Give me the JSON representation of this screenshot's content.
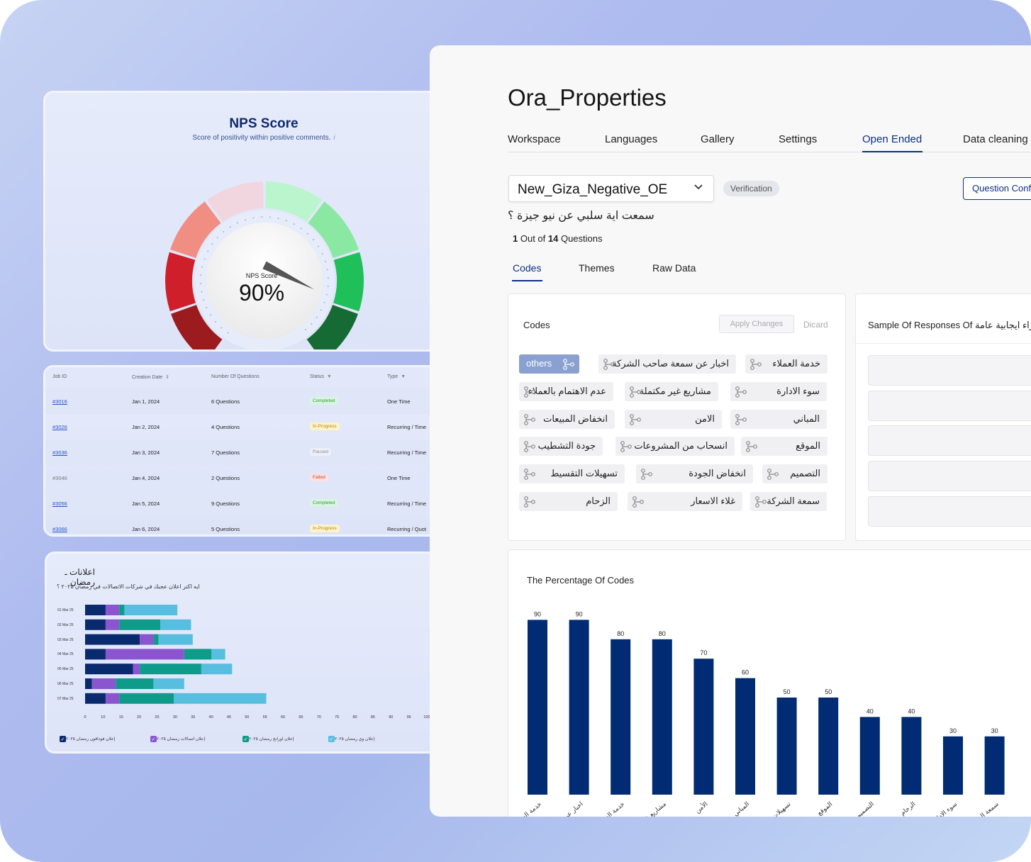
{
  "nps": {
    "title": "NPS Score",
    "subtitle": "Score of positivity within positive comments.",
    "info_icon": "i",
    "label": "NPS Score",
    "value": "90%",
    "needle_fraction": 0.9,
    "segment_colors": [
      "#9b1b1e",
      "#cf1f2b",
      "#f18e84",
      "#f2d6df",
      "#baf5cd",
      "#8ae8a3",
      "#1fbf5a",
      "#166a33"
    ]
  },
  "jobs": {
    "headers": [
      "Job ID",
      "Creation Date",
      "Number Of Questions",
      "Status",
      "Type"
    ],
    "rows": [
      {
        "id": "#3016",
        "date": "Jan 1, 2024",
        "questions": "6 Questions",
        "status": "Completed",
        "type": "One Time"
      },
      {
        "id": "#3026",
        "date": "Jan 2, 2024",
        "questions": "4 Questions",
        "status": "In-Progress",
        "type": "Recurring / Time"
      },
      {
        "id": "#3036",
        "date": "Jan 3, 2024",
        "questions": "7 Questions",
        "status": "Paused",
        "type": "Recurring / Time"
      },
      {
        "id": "#3046",
        "date": "Jan 4, 2024",
        "questions": "2 Questions",
        "status": "Failed",
        "type": "One Time"
      },
      {
        "id": "#3056",
        "date": "Jan 5, 2024",
        "questions": "9 Questions",
        "status": "Completed",
        "type": "Recurring / Time"
      },
      {
        "id": "#3066",
        "date": "Jan 6, 2024",
        "questions": "5 Questions",
        "status": "In-Progress",
        "type": "Recurring / Quot"
      }
    ]
  },
  "ads": {
    "title": "اعلانات ـ رمضان",
    "subtitle": "ايه اكتر اعلان عجبك في شركات الاتصالات في رمضان ٢٠٢٥ ؟",
    "legend_check": "✓"
  },
  "chart_data": [
    {
      "type": "bar",
      "orientation": "horizontal",
      "stacked": true,
      "categories": [
        "01 Mar 25",
        "02 Mar 25",
        "03 Mar 25",
        "04 Mar 25",
        "05 Mar 25",
        "06 Mar 25",
        "07 Mar 25"
      ],
      "series": [
        {
          "name": "إعلان فودافون رمضان ٢٠٢٥",
          "color": "#0a2a6e",
          "values": [
            6,
            6,
            16,
            6,
            14,
            2,
            6
          ]
        },
        {
          "name": "إعلان اتصالات رمضان ٢٠٢٥",
          "color": "#8a55cf",
          "values": [
            4,
            4,
            4,
            23,
            2,
            7,
            4
          ]
        },
        {
          "name": "إعلان اورانج رمضان ٢٠٢٥",
          "color": "#0f9b8a",
          "values": [
            1.5,
            12,
            1.5,
            8,
            18,
            11,
            16
          ]
        },
        {
          "name": "إعلان وي رمضان ٢٠٢٥",
          "color": "#58bedf",
          "values": [
            15.5,
            9,
            10,
            4,
            9,
            9,
            27
          ]
        }
      ],
      "xticks": [
        0,
        10,
        15,
        20,
        25,
        30,
        35,
        40,
        45,
        50,
        55,
        60,
        65,
        70,
        75,
        80,
        85,
        90,
        95,
        100
      ],
      "xlim": [
        0,
        100
      ]
    },
    {
      "type": "bar",
      "title": "The Percentage Of Codes",
      "categories": [
        "خدمة العملاء",
        "اخبار عن سمعة صاحب الشركة",
        "خدمة العملاء",
        "مشاريع غير مكتملة",
        "الأمن",
        "المباني",
        "تسهيلات التقسيط",
        "الموقع",
        "التصميم",
        "الزحام",
        "سوء الادارة",
        "سمعة الشركة"
      ],
      "values": [
        90,
        90,
        80,
        80,
        70,
        60,
        50,
        50,
        40,
        40,
        30,
        30
      ],
      "color": "#012b72",
      "ylim": [
        0,
        100
      ]
    }
  ],
  "app": {
    "title": "Ora_Properties",
    "tabs": [
      "Workspace",
      "Languages",
      "Gallery",
      "Settings",
      "Open Ended",
      "Data cleaning"
    ],
    "active_tab": "Open Ended",
    "dataset_select": "New_Giza_Negative_OE",
    "verification": "Verification",
    "question_conf_button": "Question Conf",
    "question": "سمعت اية سلبي عن نيو جيزة ؟",
    "qcount": {
      "current": "1",
      "mid": " Out of ",
      "total": "14",
      "suffix": " Questions"
    },
    "subtabs": [
      "Codes",
      "Themes",
      "Raw Data"
    ],
    "codes_header": "Codes",
    "apply_button": "Apply Changes",
    "discard_button": "Dicard",
    "codes": [
      "others",
      "اخبار عن سمعة صاحب الشركة",
      "خدمة العملاء",
      "عدم الاهتمام بالعملاء",
      "مشاريع غير مكتملة",
      "سوء الادارة",
      "انخفاض المبيعات",
      "الامن",
      "المباني",
      "جودة التشطيب",
      "انسحاب من المشروعات",
      "الموقع",
      "تسهيلات التقسيط",
      "انخفاض الجودة",
      "التصميم",
      "الزحام",
      "غلاء الاسعار",
      "سمعة الشركة"
    ],
    "sample_header": "Sample Of Responses Of اراء ايجابية عامة"
  }
}
